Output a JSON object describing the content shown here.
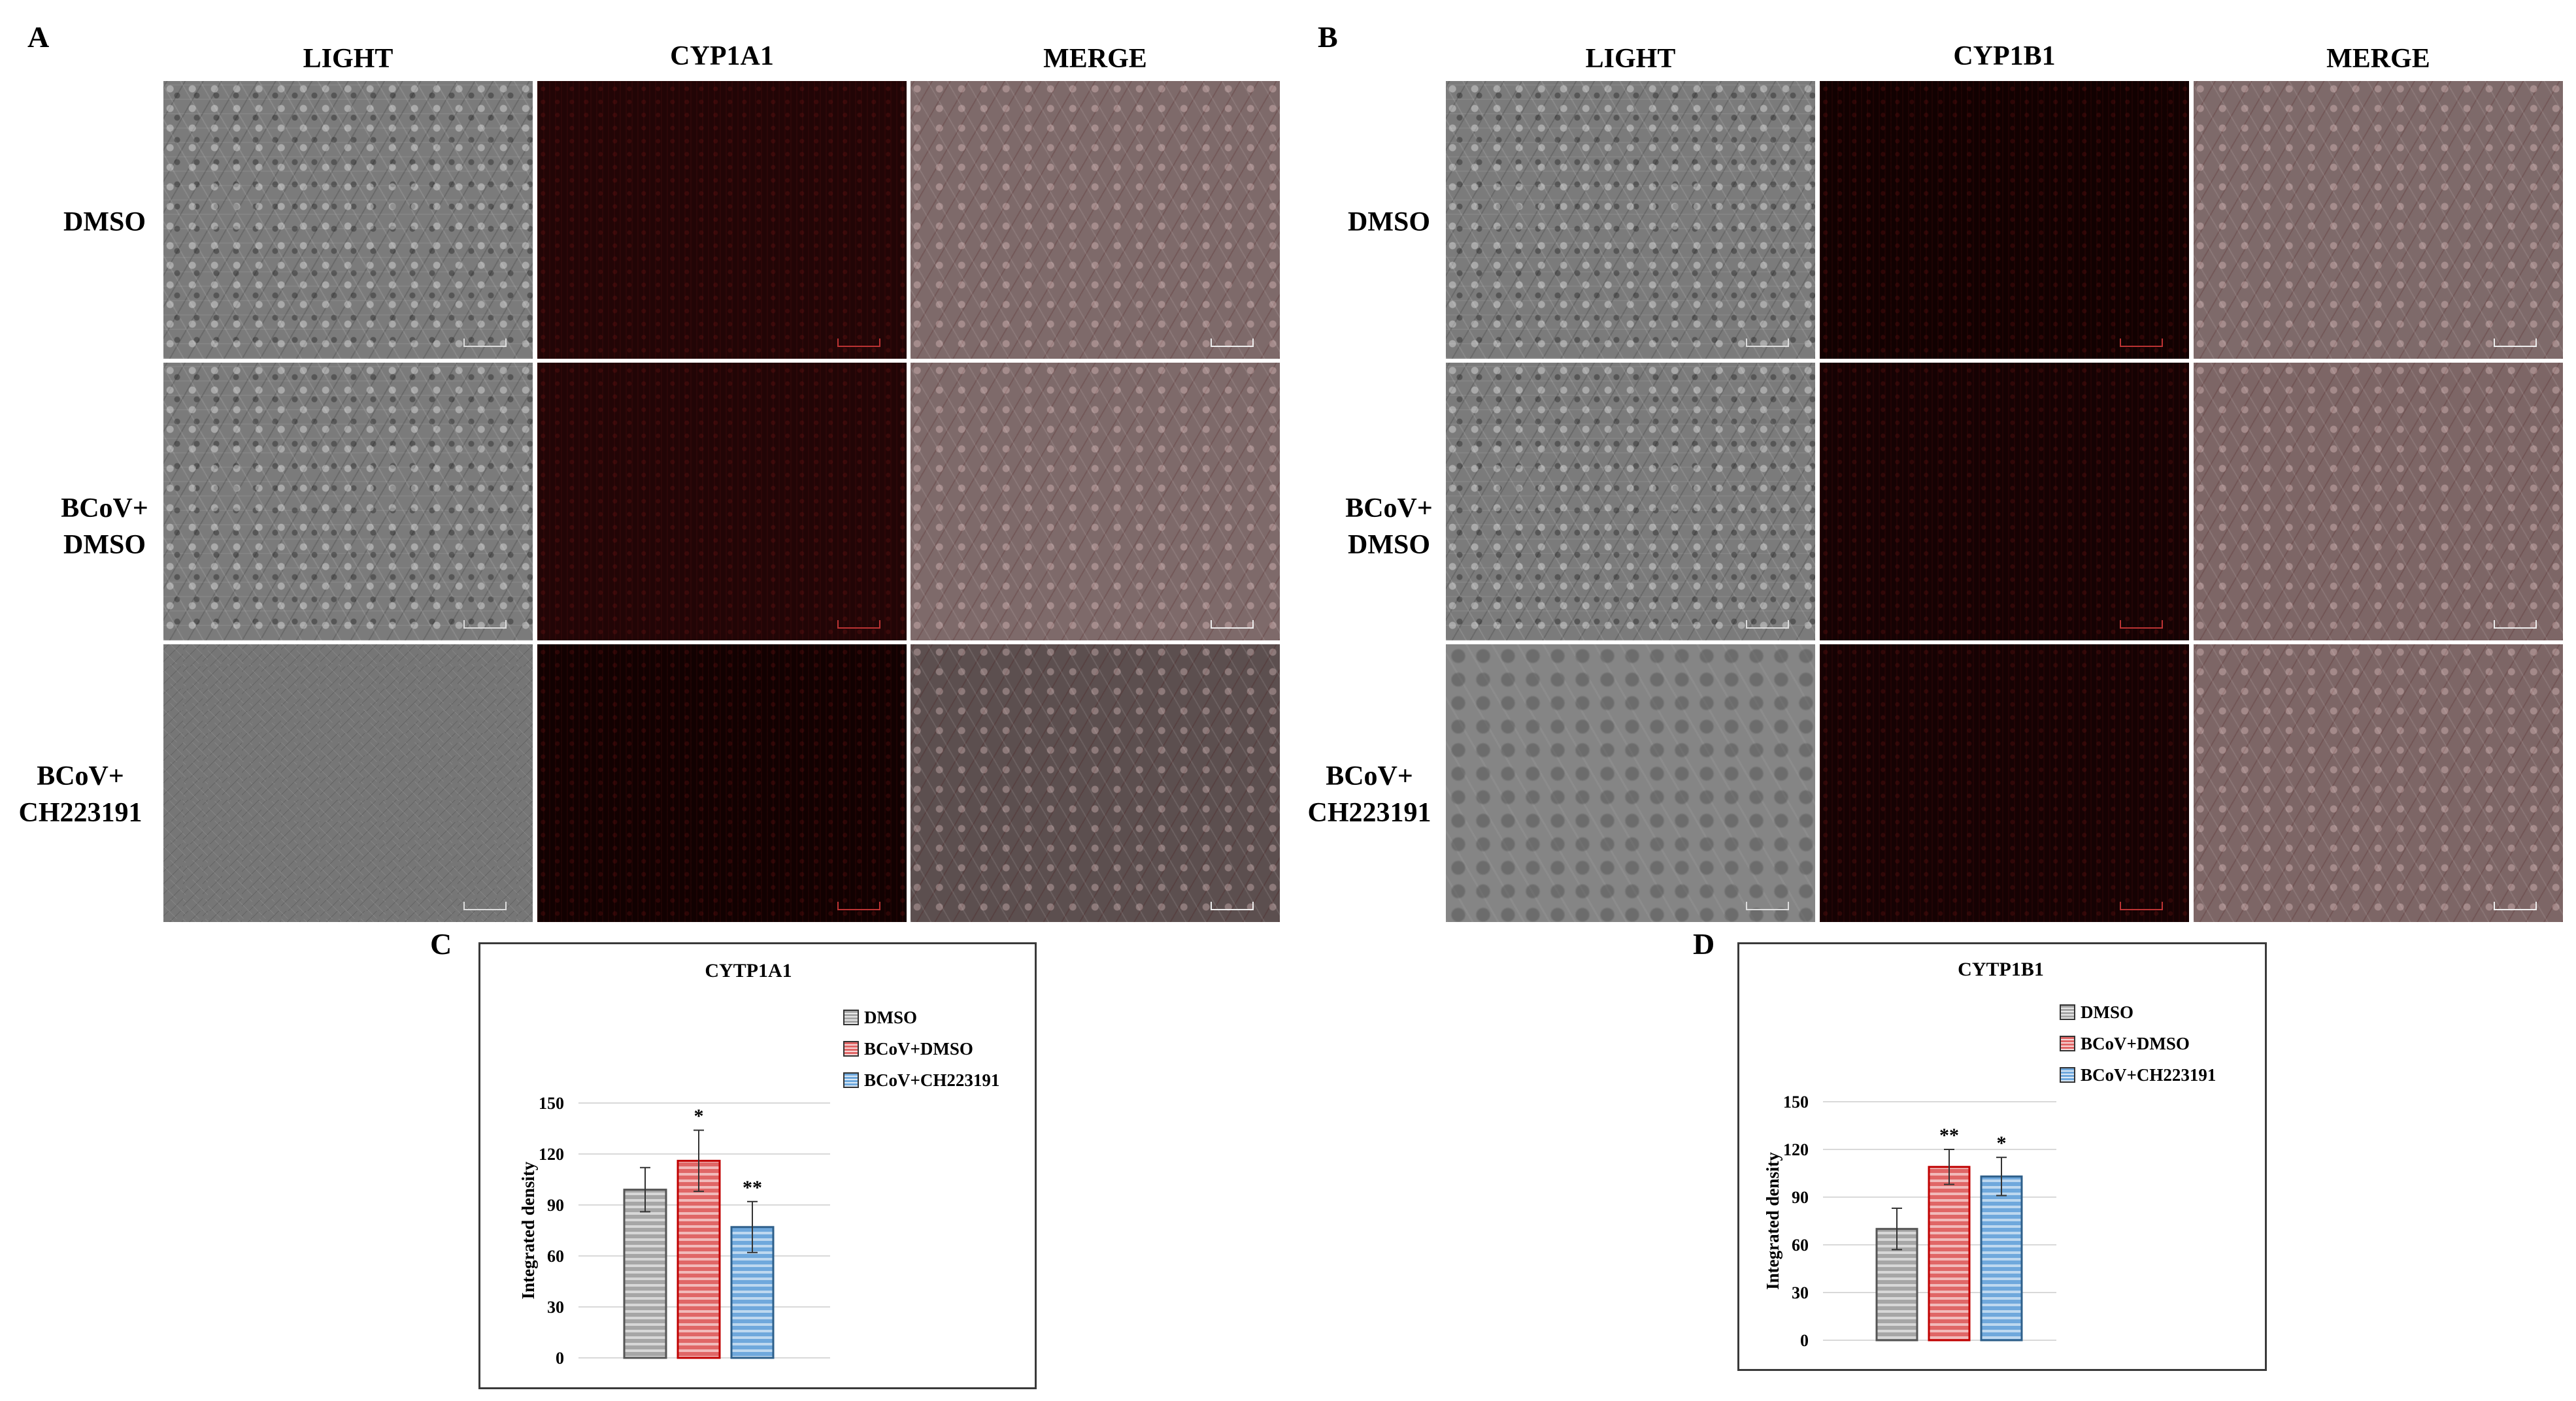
{
  "panels": {
    "a": {
      "letter": "A",
      "columns": [
        "LIGHT",
        "CYP1A1",
        "MERGE"
      ],
      "rows": [
        {
          "label_lines": [
            "DMSO"
          ]
        },
        {
          "label_lines": [
            "BCoV+",
            "DMSO"
          ]
        },
        {
          "label_lines": [
            "BCoV+",
            "CH223191"
          ]
        }
      ]
    },
    "b": {
      "letter": "B",
      "columns": [
        "LIGHT",
        "CYP1B1",
        "MERGE"
      ],
      "rows": [
        {
          "label_lines": [
            "DMSO"
          ]
        },
        {
          "label_lines": [
            "BCoV+",
            "DMSO"
          ]
        },
        {
          "label_lines": [
            "BCoV+",
            "CH223191"
          ]
        }
      ]
    },
    "c": {
      "letter": "C"
    },
    "d": {
      "letter": "D"
    }
  },
  "colors": {
    "dmso": "#a6a6a6",
    "bcov_dmso": "#e06666",
    "bcov_ch223191": "#6fa8dc",
    "gridline": "#d9d9d9"
  },
  "chart_data": [
    {
      "type": "bar",
      "title": "CYTP1A1",
      "ylabel": "Integrated density",
      "xlabel": "",
      "ylim": [
        0,
        150
      ],
      "yticks": [
        0,
        30,
        60,
        90,
        120,
        150
      ],
      "grid": true,
      "legend_position": "top-right",
      "categories": [
        "DMSO",
        "BCoV+DMSO",
        "BCoV+CH223191"
      ],
      "values": [
        99,
        116,
        77
      ],
      "errors": [
        13,
        18,
        15
      ],
      "significance": [
        "",
        "*",
        "**"
      ]
    },
    {
      "type": "bar",
      "title": "CYTP1B1",
      "ylabel": "Integrated density",
      "xlabel": "",
      "ylim": [
        0,
        150
      ],
      "yticks": [
        0,
        30,
        60,
        90,
        120,
        150
      ],
      "grid": true,
      "legend_position": "top-right",
      "categories": [
        "DMSO",
        "BCoV+DMSO",
        "BCoV+CH223191"
      ],
      "values": [
        70,
        109,
        103
      ],
      "errors": [
        13,
        11,
        12
      ],
      "significance": [
        "",
        "**",
        "*"
      ]
    }
  ]
}
